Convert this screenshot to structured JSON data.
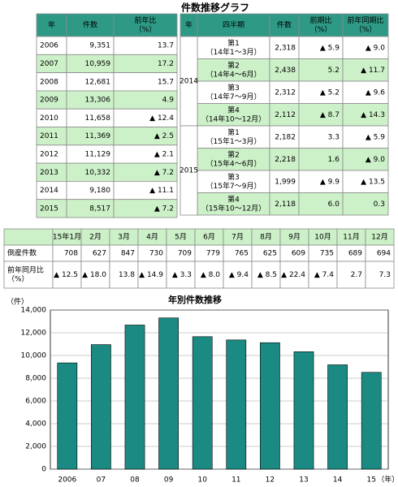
{
  "title": "件数推移グラフ",
  "annual_table": {
    "header": [
      [
        "年"
      ],
      [
        "件数"
      ],
      [
        "前年比",
        "（%）"
      ]
    ],
    "rows": [
      [
        "2006",
        "9,351",
        "13.7"
      ],
      [
        "2007",
        "10,959",
        "17.2"
      ],
      [
        "2008",
        "12,681",
        "15.7"
      ],
      [
        "2009",
        "13,306",
        "4.9"
      ],
      [
        "2010",
        "11,658",
        "▲ 12.4"
      ],
      [
        "2011",
        "11,369",
        "▲ 2.5"
      ],
      [
        "2012",
        "11,129",
        "▲ 2.1"
      ],
      [
        "2013",
        "10,332",
        "▲ 7.2"
      ],
      [
        "2014",
        "9,180",
        "▲ 11.1"
      ],
      [
        "2015",
        "8,517",
        "▲ 7.2"
      ]
    ]
  },
  "quarterly_table": {
    "header": [
      [
        "年"
      ],
      [
        "四半期"
      ],
      [
        "件数"
      ],
      [
        "前期比",
        "（%）"
      ],
      [
        "前年同期比",
        "（%）"
      ]
    ],
    "years": [
      {
        "year": "2014",
        "rows": [
          [
            [
              "第1",
              "（14年1～3月）"
            ],
            "2,318",
            "▲ 5.9",
            "▲ 9.0"
          ],
          [
            [
              "第2",
              "（14年4～6月）"
            ],
            "2,438",
            "5.2",
            "▲ 11.7"
          ],
          [
            [
              "第3",
              "（14年7～9月）"
            ],
            "2,312",
            "▲ 5.2",
            "▲ 9.6"
          ],
          [
            [
              "第4",
              "（14年10～12月）"
            ],
            "2,112",
            "▲ 8.7",
            "▲ 14.3"
          ]
        ]
      },
      {
        "year": "2015",
        "rows": [
          [
            [
              "第1",
              "（15年1～3月）"
            ],
            "2,182",
            "3.3",
            "▲ 5.9"
          ],
          [
            [
              "第2",
              "（15年4～6月）"
            ],
            "2,218",
            "1.6",
            "▲ 9.0"
          ],
          [
            [
              "第3",
              "（15年7～9月）"
            ],
            "1,999",
            "▲ 9.9",
            "▲ 13.5"
          ],
          [
            [
              "第4",
              "（15年10～12月）"
            ],
            "2,118",
            "6.0",
            "0.3"
          ]
        ]
      }
    ]
  },
  "monthly_table": {
    "months": [
      "15年1月",
      "2月",
      "3月",
      "4月",
      "5月",
      "6月",
      "7月",
      "8月",
      "9月",
      "10月",
      "11月",
      "12月"
    ],
    "rows": [
      {
        "label": [
          "倒産件数"
        ],
        "values": [
          "708",
          "627",
          "847",
          "730",
          "709",
          "779",
          "765",
          "625",
          "609",
          "735",
          "689",
          "694"
        ]
      },
      {
        "label": [
          "前年同月比",
          "（%）"
        ],
        "values": [
          "▲ 12.5",
          "▲ 18.0",
          "13.8",
          "▲ 14.9",
          "▲ 3.3",
          "▲ 8.0",
          "▲ 9.4",
          "▲ 8.5",
          "▲ 22.4",
          "▲ 7.4",
          "2.7",
          "7.3"
        ]
      }
    ]
  },
  "chart_data": {
    "type": "bar",
    "title": "年別件数推移",
    "y_unit": "（件）",
    "x_unit": "（年）",
    "categories": [
      "2006",
      "07",
      "08",
      "09",
      "10",
      "11",
      "12",
      "13",
      "14",
      "15"
    ],
    "values": [
      9351,
      10959,
      12681,
      13306,
      11658,
      11369,
      11129,
      10332,
      9180,
      8517
    ],
    "color": "#1b8a82",
    "ylim": [
      0,
      14000
    ],
    "yticks": [
      0,
      {
        "value": 2000,
        "label": "2,000"
      },
      {
        "value": 4000,
        "label": "4,000"
      },
      {
        "value": 6000,
        "label": "6,000"
      },
      {
        "value": 8000,
        "label": "8,000"
      },
      {
        "value": 10000,
        "label": "10,000"
      },
      {
        "value": 12000,
        "label": "12,000"
      },
      {
        "value": 14000,
        "label": "14,000"
      }
    ],
    "grid": true
  }
}
